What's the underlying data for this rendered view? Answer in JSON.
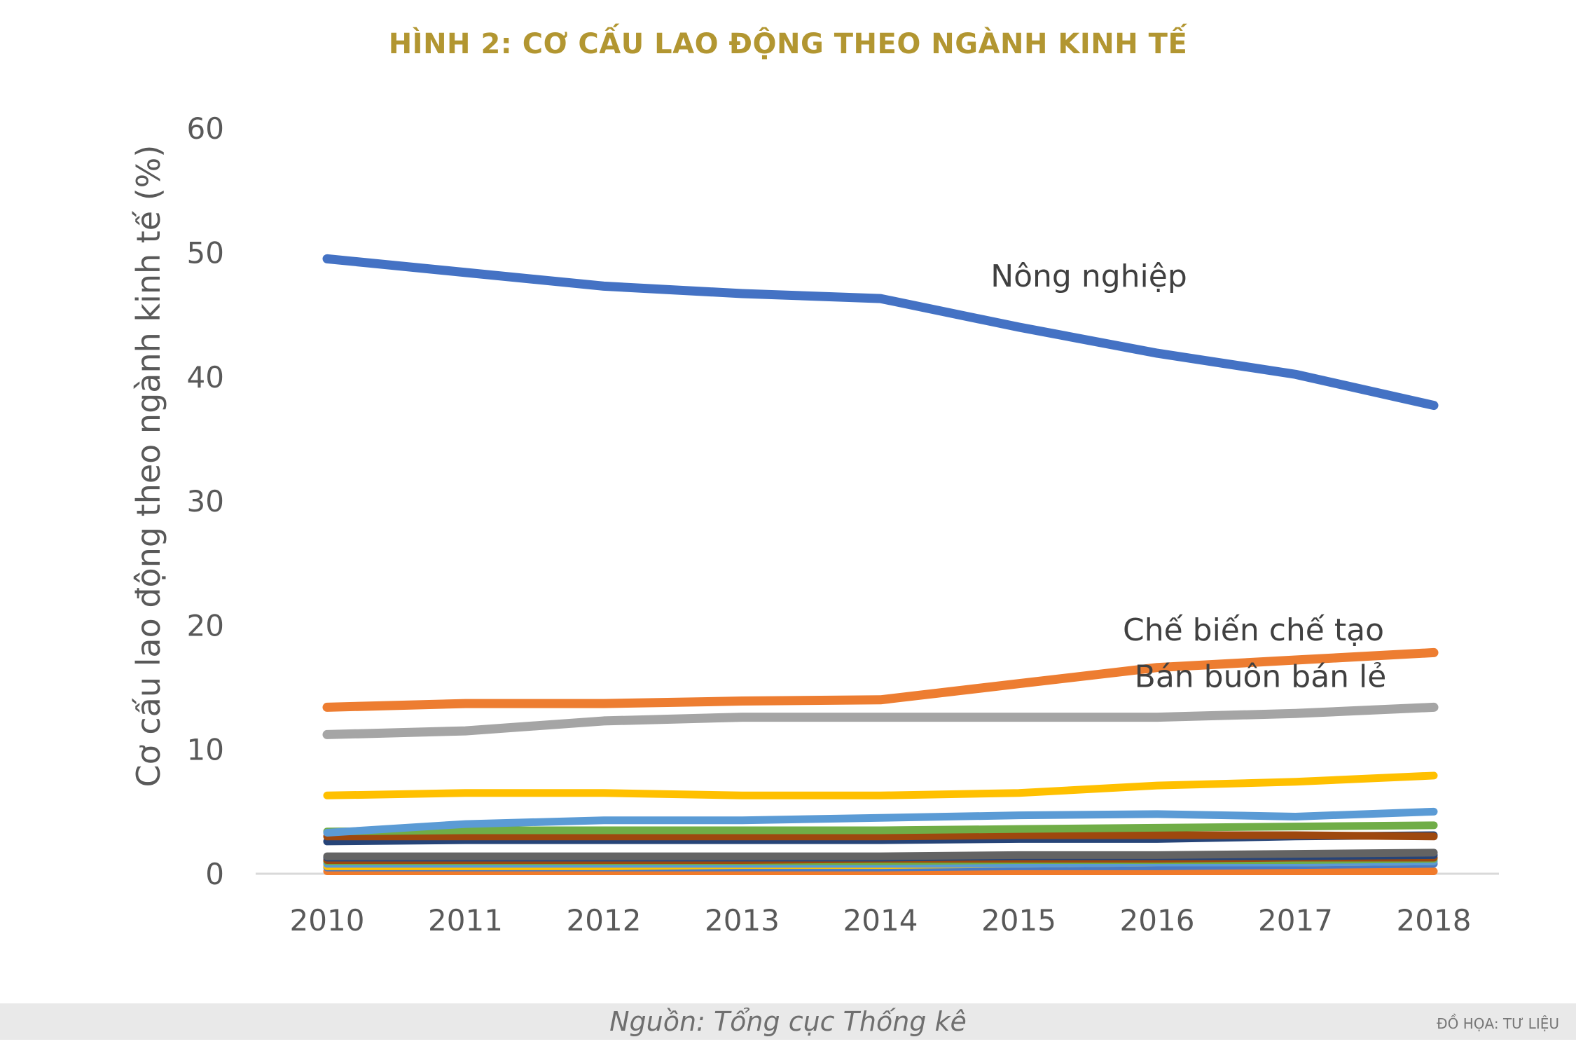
{
  "header": {
    "title": "HÌNH 2: CƠ CẤU LAO ĐỘNG THEO NGÀNH KINH TẾ",
    "title_color": "#b29631"
  },
  "footer": {
    "source": "Nguồn: Tổng cục Thống kê",
    "credit": "ĐỒ HỌA:  TƯ LIỆU"
  },
  "chart_data": {
    "type": "line",
    "title": "HÌNH 2: CƠ CẤU LAO ĐỘNG THEO NGÀNH KINH TẾ",
    "xlabel": "",
    "ylabel": "Cơ cấu lao động theo ngành kinh tế (%)",
    "categories": [
      "2010",
      "2011",
      "2012",
      "2013",
      "2014",
      "2015",
      "2016",
      "2017",
      "2018"
    ],
    "ylim": [
      0,
      60
    ],
    "yticks": [
      0,
      10,
      20,
      30,
      40,
      50,
      60
    ],
    "grid": false,
    "legend": "none",
    "series": [
      {
        "name": "",
        "color": "#f07a2a",
        "values": [
          0.2,
          0.2,
          0.2,
          0.2,
          0.2,
          0.2,
          0.2,
          0.2,
          0.2
        ]
      },
      {
        "name": "",
        "color": "#4a7ac4",
        "values": [
          0.5,
          0.5,
          0.5,
          0.5,
          0.5,
          0.6,
          0.6,
          0.7,
          0.8
        ]
      },
      {
        "name": "",
        "color": "#ffc000",
        "values": [
          0.6,
          0.6,
          0.6,
          0.7,
          0.7,
          0.8,
          0.9,
          0.9,
          1.0
        ]
      },
      {
        "name": "",
        "color": "#5b9bd5",
        "values": [
          0.8,
          0.8,
          0.8,
          0.8,
          0.8,
          0.8,
          0.9,
          0.9,
          1.0
        ]
      },
      {
        "name": "",
        "color": "#70ad47",
        "values": [
          1.0,
          1.0,
          1.0,
          1.0,
          1.0,
          1.1,
          1.1,
          1.1,
          1.2
        ]
      },
      {
        "name": "",
        "color": "#9e480e",
        "values": [
          1.1,
          1.1,
          1.1,
          1.1,
          1.2,
          1.2,
          1.2,
          1.3,
          1.3
        ]
      },
      {
        "name": "",
        "color": "#264478",
        "values": [
          1.3,
          1.3,
          1.3,
          1.3,
          1.3,
          1.4,
          1.4,
          1.4,
          1.5
        ]
      },
      {
        "name": "",
        "color": "#636363",
        "values": [
          1.4,
          1.4,
          1.4,
          1.4,
          1.4,
          1.5,
          1.5,
          1.6,
          1.7
        ]
      },
      {
        "name": "",
        "color": "#264478",
        "values": [
          2.6,
          2.7,
          2.7,
          2.7,
          2.7,
          2.8,
          2.8,
          3.0,
          3.1
        ]
      },
      {
        "name": "",
        "color": "#9e480e",
        "values": [
          3.0,
          3.0,
          3.0,
          3.0,
          3.0,
          3.1,
          3.1,
          3.1,
          3.0
        ]
      },
      {
        "name": "",
        "color": "#70ad47",
        "values": [
          3.4,
          3.5,
          3.5,
          3.5,
          3.5,
          3.6,
          3.7,
          3.8,
          3.9
        ]
      },
      {
        "name": "",
        "color": "#5b9bd5",
        "values": [
          3.3,
          4.0,
          4.3,
          4.3,
          4.5,
          4.7,
          4.8,
          4.6,
          5.0
        ]
      },
      {
        "name": "",
        "color": "#ffc000",
        "values": [
          6.3,
          6.5,
          6.5,
          6.3,
          6.3,
          6.5,
          7.1,
          7.4,
          7.9
        ]
      },
      {
        "name": "Bán buôn bán lẻ",
        "color": "#a5a5a5",
        "values": [
          11.2,
          11.5,
          12.3,
          12.6,
          12.6,
          12.6,
          12.6,
          12.9,
          13.4
        ]
      },
      {
        "name": "Chế biến chế tạo",
        "color": "#ed7d31",
        "values": [
          13.4,
          13.7,
          13.7,
          13.9,
          14.0,
          15.3,
          16.6,
          17.2,
          17.8
        ]
      },
      {
        "name": "Nông nghiệp",
        "color": "#4472c4",
        "values": [
          49.5,
          48.4,
          47.3,
          46.7,
          46.3,
          44.0,
          41.9,
          40.2,
          37.7
        ]
      }
    ]
  }
}
